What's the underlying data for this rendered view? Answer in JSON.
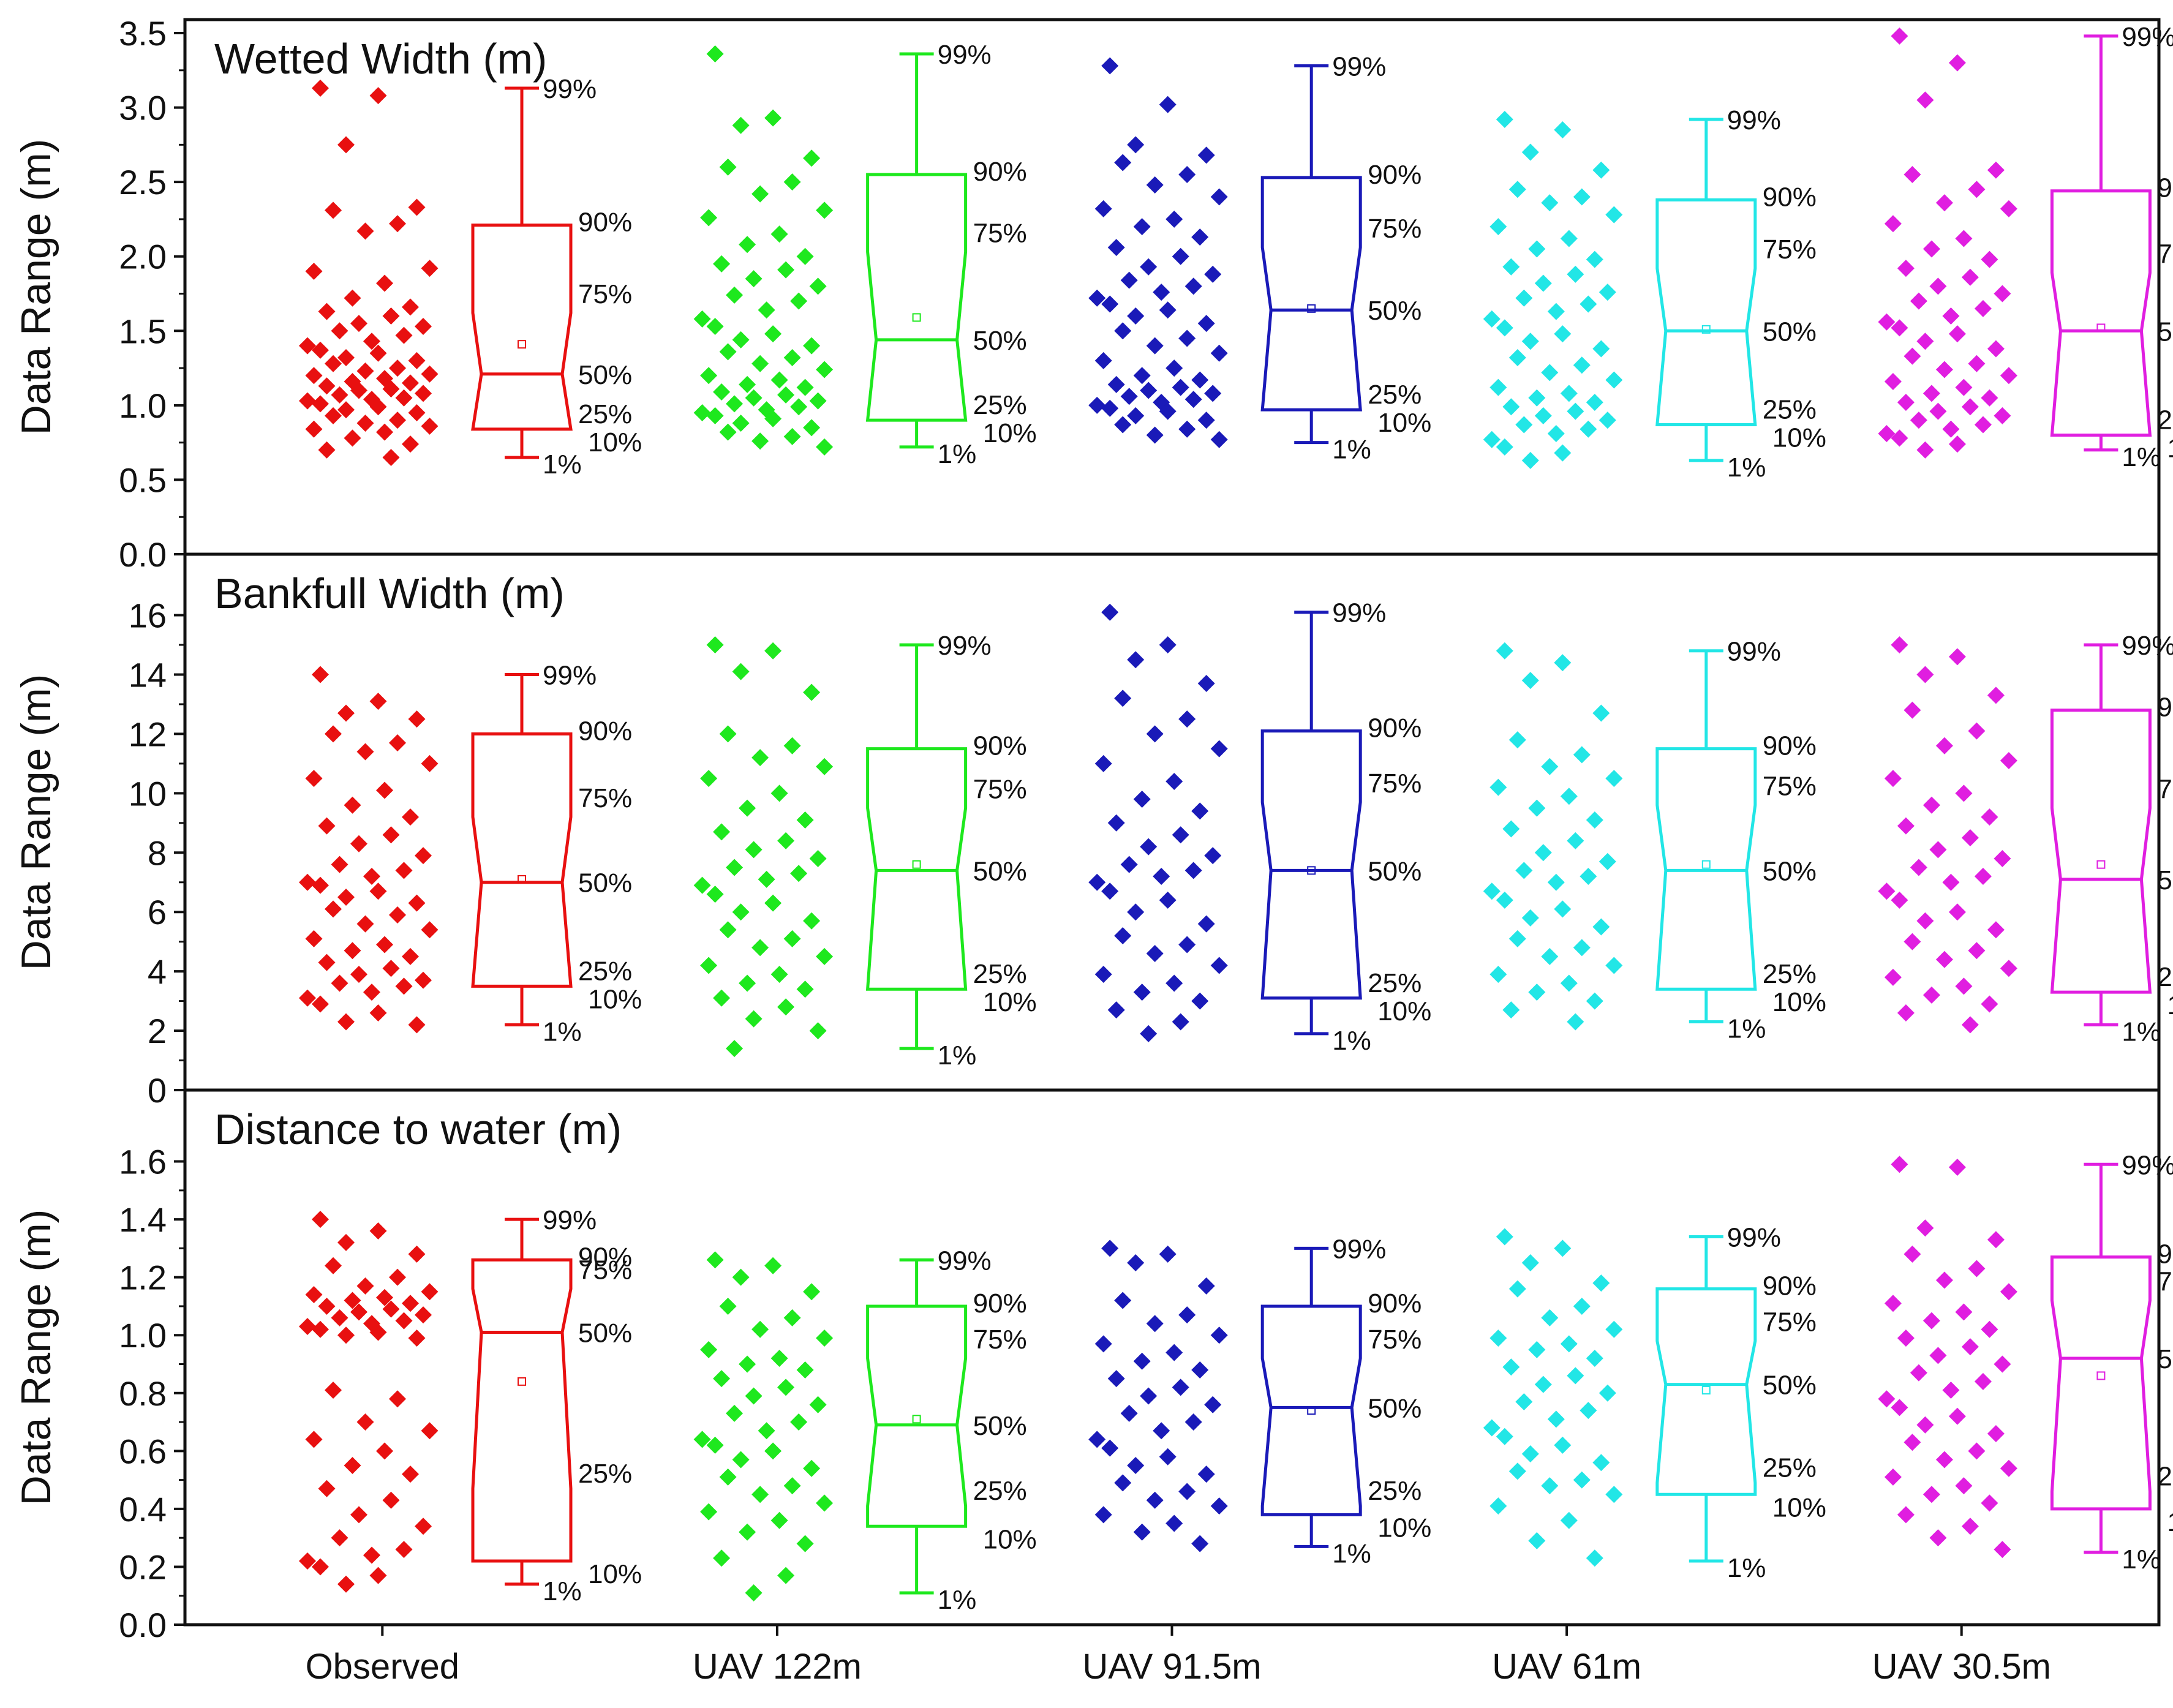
{
  "chart_data": [
    {
      "type": "box",
      "title": "Wetted Width (m)",
      "ylabel": "Data Range (m)",
      "ylim": [
        0,
        3.5
      ],
      "yticks": [
        "0.0",
        "0.5",
        "1.0",
        "1.5",
        "2.0",
        "2.5",
        "3.0",
        "3.5"
      ],
      "categories": [
        "Observed",
        "UAV 122m",
        "UAV 91.5m",
        "UAV 61m",
        "UAV 30.5m"
      ],
      "series": [
        {
          "name": "Observed",
          "p1": 0.65,
          "p10": 0.84,
          "p25": 0.84,
          "median": 1.21,
          "p75": 1.62,
          "p90": 2.21,
          "p99": 3.13,
          "mean": 1.41,
          "points": [
            3.13,
            3.08,
            2.75,
            2.33,
            2.31,
            2.22,
            2.17,
            1.92,
            1.9,
            1.82,
            1.72,
            1.66,
            1.63,
            1.6,
            1.55,
            1.53,
            1.5,
            1.47,
            1.43,
            1.4,
            1.37,
            1.35,
            1.32,
            1.3,
            1.28,
            1.25,
            1.23,
            1.21,
            1.2,
            1.18,
            1.16,
            1.15,
            1.13,
            1.11,
            1.1,
            1.08,
            1.07,
            1.05,
            1.04,
            1.03,
            1.01,
            0.99,
            0.97,
            0.95,
            0.93,
            0.9,
            0.88,
            0.86,
            0.84,
            0.82,
            0.78,
            0.74,
            0.7,
            0.65
          ]
        },
        {
          "name": "UAV 122m",
          "p1": 0.72,
          "p10": 0.9,
          "p25": 0.9,
          "median": 1.44,
          "p75": 2.03,
          "p90": 2.55,
          "p99": 3.36,
          "mean": 1.59,
          "points": [
            3.36,
            2.93,
            2.88,
            2.66,
            2.6,
            2.5,
            2.42,
            2.31,
            2.26,
            2.15,
            2.08,
            2.0,
            1.95,
            1.91,
            1.85,
            1.8,
            1.74,
            1.7,
            1.64,
            1.58,
            1.53,
            1.48,
            1.44,
            1.4,
            1.36,
            1.32,
            1.28,
            1.24,
            1.2,
            1.17,
            1.14,
            1.12,
            1.09,
            1.07,
            1.05,
            1.03,
            1.01,
            0.99,
            0.97,
            0.95,
            0.93,
            0.91,
            0.88,
            0.85,
            0.82,
            0.79,
            0.76,
            0.72
          ]
        },
        {
          "name": "UAV 91.5m",
          "p1": 0.75,
          "p10": 0.97,
          "p25": 0.97,
          "median": 1.64,
          "p75": 2.06,
          "p90": 2.53,
          "p99": 3.28,
          "mean": 1.65,
          "points": [
            3.28,
            3.02,
            2.75,
            2.68,
            2.63,
            2.55,
            2.48,
            2.4,
            2.32,
            2.25,
            2.2,
            2.13,
            2.06,
            2.0,
            1.93,
            1.88,
            1.84,
            1.8,
            1.76,
            1.72,
            1.68,
            1.64,
            1.6,
            1.55,
            1.5,
            1.45,
            1.4,
            1.35,
            1.3,
            1.25,
            1.2,
            1.17,
            1.14,
            1.12,
            1.1,
            1.08,
            1.06,
            1.04,
            1.02,
            1.0,
            0.98,
            0.96,
            0.93,
            0.9,
            0.87,
            0.84,
            0.8,
            0.77
          ]
        },
        {
          "name": "UAV 61m",
          "p1": 0.63,
          "p10": 0.87,
          "p25": 0.87,
          "median": 1.5,
          "p75": 1.92,
          "p90": 2.38,
          "p99": 2.92,
          "mean": 1.51,
          "points": [
            2.92,
            2.85,
            2.7,
            2.58,
            2.45,
            2.4,
            2.36,
            2.28,
            2.2,
            2.12,
            2.05,
            1.98,
            1.93,
            1.88,
            1.82,
            1.76,
            1.72,
            1.68,
            1.63,
            1.58,
            1.52,
            1.48,
            1.43,
            1.38,
            1.32,
            1.27,
            1.22,
            1.17,
            1.12,
            1.08,
            1.05,
            1.02,
            0.99,
            0.96,
            0.93,
            0.9,
            0.87,
            0.84,
            0.81,
            0.77,
            0.72,
            0.68,
            0.63
          ]
        },
        {
          "name": "UAV 30.5m",
          "p1": 0.7,
          "p10": 0.8,
          "p25": 0.8,
          "median": 1.5,
          "p75": 1.89,
          "p90": 2.44,
          "p99": 3.48,
          "mean": 1.52,
          "points": [
            3.48,
            3.3,
            3.05,
            2.58,
            2.55,
            2.45,
            2.36,
            2.32,
            2.22,
            2.12,
            2.05,
            1.98,
            1.92,
            1.86,
            1.8,
            1.75,
            1.7,
            1.65,
            1.6,
            1.56,
            1.52,
            1.48,
            1.43,
            1.38,
            1.33,
            1.28,
            1.24,
            1.2,
            1.16,
            1.12,
            1.08,
            1.05,
            1.02,
            0.99,
            0.96,
            0.93,
            0.9,
            0.87,
            0.84,
            0.81,
            0.78,
            0.74,
            0.7
          ]
        }
      ]
    },
    {
      "type": "box",
      "title": "Bankfull Width (m)",
      "ylabel": "Data Range (m)",
      "ylim": [
        0,
        17.6
      ],
      "yticks": [
        "0",
        "2",
        "4",
        "6",
        "8",
        "10",
        "12",
        "14",
        "16"
      ],
      "categories": [
        "Observed",
        "UAV 122m",
        "UAV 91.5m",
        "UAV 61m",
        "UAV 30.5m"
      ],
      "series": [
        {
          "name": "Observed",
          "p1": 2.2,
          "p10": 3.5,
          "p25": 3.5,
          "median": 7.0,
          "p75": 9.2,
          "p90": 12.0,
          "p99": 14.0,
          "mean": 7.1,
          "points": [
            14.0,
            13.1,
            12.7,
            12.5,
            12.0,
            11.7,
            11.4,
            11.0,
            10.5,
            10.1,
            9.6,
            9.2,
            8.9,
            8.6,
            8.3,
            7.9,
            7.6,
            7.4,
            7.2,
            7.0,
            6.9,
            6.7,
            6.5,
            6.3,
            6.1,
            5.9,
            5.6,
            5.4,
            5.1,
            4.9,
            4.7,
            4.5,
            4.3,
            4.1,
            3.9,
            3.7,
            3.6,
            3.5,
            3.3,
            3.1,
            2.9,
            2.6,
            2.3,
            2.2
          ]
        },
        {
          "name": "UAV 122m",
          "p1": 1.4,
          "p10": 3.4,
          "p25": 3.4,
          "median": 7.4,
          "p75": 9.5,
          "p90": 11.5,
          "p99": 15.0,
          "mean": 7.6,
          "points": [
            15.0,
            14.8,
            14.1,
            13.4,
            12.0,
            11.6,
            11.2,
            10.9,
            10.5,
            10.0,
            9.5,
            9.1,
            8.7,
            8.4,
            8.1,
            7.8,
            7.5,
            7.3,
            7.1,
            6.9,
            6.6,
            6.3,
            6.0,
            5.7,
            5.4,
            5.1,
            4.8,
            4.5,
            4.2,
            3.9,
            3.6,
            3.4,
            3.1,
            2.8,
            2.4,
            2.0,
            1.4
          ]
        },
        {
          "name": "UAV 91.5m",
          "p1": 1.9,
          "p10": 3.1,
          "p25": 3.1,
          "median": 7.4,
          "p75": 9.7,
          "p90": 12.1,
          "p99": 16.1,
          "mean": 7.4,
          "points": [
            16.1,
            15.0,
            14.5,
            13.7,
            13.2,
            12.5,
            12.0,
            11.5,
            11.0,
            10.4,
            9.8,
            9.4,
            9.0,
            8.6,
            8.2,
            7.9,
            7.6,
            7.4,
            7.2,
            7.0,
            6.7,
            6.4,
            6.0,
            5.6,
            5.2,
            4.9,
            4.6,
            4.2,
            3.9,
            3.6,
            3.3,
            3.0,
            2.7,
            2.3,
            1.9
          ]
        },
        {
          "name": "UAV 61m",
          "p1": 2.3,
          "p10": 3.4,
          "p25": 3.4,
          "median": 7.4,
          "p75": 9.6,
          "p90": 11.5,
          "p99": 14.8,
          "mean": 7.6,
          "points": [
            14.8,
            14.4,
            13.8,
            12.7,
            11.8,
            11.3,
            10.9,
            10.5,
            10.2,
            9.9,
            9.5,
            9.1,
            8.8,
            8.4,
            8.0,
            7.7,
            7.4,
            7.2,
            7.0,
            6.7,
            6.4,
            6.1,
            5.8,
            5.5,
            5.1,
            4.8,
            4.5,
            4.2,
            3.9,
            3.6,
            3.3,
            3.0,
            2.7,
            2.3
          ]
        },
        {
          "name": "UAV 30.5m",
          "p1": 2.2,
          "p10": 3.3,
          "p25": 3.3,
          "median": 7.1,
          "p75": 9.5,
          "p90": 12.8,
          "p99": 15.0,
          "mean": 7.6,
          "points": [
            15.0,
            14.6,
            14.0,
            13.3,
            12.8,
            12.1,
            11.6,
            11.1,
            10.5,
            10.0,
            9.6,
            9.2,
            8.9,
            8.5,
            8.1,
            7.8,
            7.5,
            7.2,
            7.0,
            6.7,
            6.4,
            6.0,
            5.7,
            5.4,
            5.0,
            4.7,
            4.4,
            4.1,
            3.8,
            3.5,
            3.2,
            2.9,
            2.6,
            2.2
          ]
        }
      ]
    },
    {
      "type": "box",
      "title": "Distance to water (m)",
      "ylabel": "Data Range (m)",
      "ylim": [
        0,
        1.8
      ],
      "yticks": [
        "0.0",
        "0.2",
        "0.4",
        "0.6",
        "0.8",
        "1.0",
        "1.2",
        "1.4",
        "1.6"
      ],
      "categories": [
        "Observed",
        "UAV 122m",
        "UAV 91.5m",
        "UAV 61m",
        "UAV 30.5m"
      ],
      "series": [
        {
          "name": "Observed",
          "p1": 0.14,
          "p10": 0.22,
          "p25": 0.47,
          "median": 1.01,
          "p75": 1.16,
          "p90": 1.26,
          "p99": 1.4,
          "mean": 0.84,
          "points": [
            1.4,
            1.36,
            1.32,
            1.28,
            1.24,
            1.2,
            1.17,
            1.15,
            1.14,
            1.13,
            1.12,
            1.11,
            1.1,
            1.09,
            1.08,
            1.07,
            1.06,
            1.05,
            1.04,
            1.03,
            1.02,
            1.01,
            1.0,
            0.99,
            0.81,
            0.78,
            0.7,
            0.67,
            0.64,
            0.6,
            0.55,
            0.52,
            0.47,
            0.43,
            0.38,
            0.34,
            0.3,
            0.26,
            0.24,
            0.22,
            0.2,
            0.17,
            0.14
          ]
        },
        {
          "name": "UAV 122m",
          "p1": 0.11,
          "p10": 0.34,
          "p25": 0.41,
          "median": 0.69,
          "p75": 0.92,
          "p90": 1.1,
          "p99": 1.26,
          "mean": 0.71,
          "points": [
            1.26,
            1.24,
            1.2,
            1.15,
            1.1,
            1.06,
            1.02,
            0.99,
            0.95,
            0.92,
            0.9,
            0.88,
            0.85,
            0.82,
            0.79,
            0.76,
            0.73,
            0.7,
            0.67,
            0.64,
            0.62,
            0.6,
            0.57,
            0.54,
            0.51,
            0.48,
            0.45,
            0.42,
            0.39,
            0.36,
            0.32,
            0.28,
            0.23,
            0.17,
            0.11
          ]
        },
        {
          "name": "UAV 91.5m",
          "p1": 0.27,
          "p10": 0.38,
          "p25": 0.41,
          "median": 0.75,
          "p75": 0.92,
          "p90": 1.1,
          "p99": 1.3,
          "mean": 0.74,
          "points": [
            1.3,
            1.28,
            1.25,
            1.17,
            1.12,
            1.07,
            1.04,
            1.0,
            0.97,
            0.94,
            0.91,
            0.88,
            0.85,
            0.82,
            0.79,
            0.76,
            0.73,
            0.7,
            0.67,
            0.64,
            0.61,
            0.58,
            0.55,
            0.52,
            0.49,
            0.46,
            0.43,
            0.41,
            0.38,
            0.35,
            0.32,
            0.28
          ]
        },
        {
          "name": "UAV 61m",
          "p1": 0.22,
          "p10": 0.45,
          "p25": 0.49,
          "median": 0.83,
          "p75": 0.98,
          "p90": 1.16,
          "p99": 1.34,
          "mean": 0.81,
          "points": [
            1.34,
            1.3,
            1.25,
            1.18,
            1.16,
            1.1,
            1.06,
            1.02,
            0.99,
            0.97,
            0.95,
            0.92,
            0.89,
            0.86,
            0.83,
            0.8,
            0.77,
            0.74,
            0.71,
            0.68,
            0.65,
            0.62,
            0.59,
            0.56,
            0.53,
            0.5,
            0.48,
            0.45,
            0.41,
            0.36,
            0.29,
            0.23
          ]
        },
        {
          "name": "UAV 30.5m",
          "p1": 0.25,
          "p10": 0.4,
          "p25": 0.46,
          "median": 0.92,
          "p75": 1.12,
          "p90": 1.27,
          "p99": 1.59,
          "mean": 0.86,
          "points": [
            1.59,
            1.58,
            1.37,
            1.33,
            1.28,
            1.23,
            1.19,
            1.15,
            1.11,
            1.08,
            1.05,
            1.02,
            0.99,
            0.96,
            0.93,
            0.9,
            0.87,
            0.84,
            0.81,
            0.78,
            0.75,
            0.72,
            0.69,
            0.66,
            0.63,
            0.6,
            0.57,
            0.54,
            0.51,
            0.48,
            0.45,
            0.42,
            0.38,
            0.34,
            0.3,
            0.26
          ]
        }
      ]
    }
  ],
  "colors": {
    "Observed": "#e81010",
    "UAV 122m": "#1ee81e",
    "UAV 91.5m": "#1a1ab8",
    "UAV 61m": "#22e6e6",
    "UAV 30.5m": "#e01ee0",
    "axis": "#111111"
  },
  "percentile_labels": {
    "p1": "1%",
    "p10": "10%",
    "p25": "25%",
    "p50": "50%",
    "p75": "75%",
    "p90": "90%",
    "p99": "99%"
  }
}
